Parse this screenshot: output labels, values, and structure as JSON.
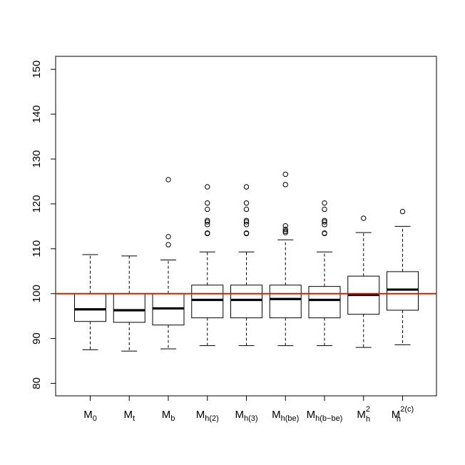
{
  "chart_data": {
    "type": "box",
    "title": "",
    "xlabel": "",
    "ylabel": "",
    "ylim": [
      77,
      153
    ],
    "yticks": [
      80,
      90,
      100,
      110,
      120,
      130,
      140,
      150
    ],
    "ytick_labels": [
      "80",
      "90",
      "100",
      "110",
      "120",
      "130",
      "140",
      "150"
    ],
    "reference_line": {
      "y": 100,
      "color": "#cc2200"
    },
    "box_fill": "#ffffff",
    "grid": false,
    "categories": [
      {
        "base": "M",
        "sub": "0",
        "sup": ""
      },
      {
        "base": "M",
        "sub": "t",
        "sup": ""
      },
      {
        "base": "M",
        "sub": "b",
        "sup": ""
      },
      {
        "base": "M",
        "sub": "h(2)",
        "sup": ""
      },
      {
        "base": "M",
        "sub": "h(3)",
        "sup": ""
      },
      {
        "base": "M",
        "sub": "h(be)",
        "sup": ""
      },
      {
        "base": "M",
        "sub": "h(b−be)",
        "sup": ""
      },
      {
        "base": "M",
        "sub": "h",
        "sup": "2"
      },
      {
        "base": "M",
        "sub": "h",
        "sup": "2(c)"
      }
    ],
    "boxes": [
      {
        "whisker_low": 87.5,
        "q1": 93.8,
        "median": 96.5,
        "q3": 100.0,
        "whisker_high": 108.7,
        "outliers": []
      },
      {
        "whisker_low": 87.2,
        "q1": 93.6,
        "median": 96.3,
        "q3": 100.0,
        "whisker_high": 108.4,
        "outliers": []
      },
      {
        "whisker_low": 87.7,
        "q1": 93.0,
        "median": 96.7,
        "q3": 100.0,
        "whisker_high": 107.5,
        "outliers": [
          110.9,
          112.7,
          125.4
        ]
      },
      {
        "whisker_low": 88.4,
        "q1": 94.6,
        "median": 98.6,
        "q3": 101.9,
        "whisker_high": 109.3,
        "outliers": [
          113.4,
          113.5,
          115.4,
          116.0,
          116.3,
          118.8,
          120.2,
          123.8
        ]
      },
      {
        "whisker_low": 88.4,
        "q1": 94.6,
        "median": 98.6,
        "q3": 101.9,
        "whisker_high": 109.3,
        "outliers": [
          113.4,
          113.5,
          115.4,
          116.0,
          116.3,
          118.8,
          120.2,
          123.8
        ]
      },
      {
        "whisker_low": 88.4,
        "q1": 94.6,
        "median": 98.8,
        "q3": 101.9,
        "whisker_high": 112.0,
        "outliers": [
          113.6,
          113.9,
          114.3,
          115.1,
          124.3,
          126.6
        ]
      },
      {
        "whisker_low": 88.4,
        "q1": 94.6,
        "median": 98.6,
        "q3": 101.6,
        "whisker_high": 109.3,
        "outliers": [
          113.4,
          113.5,
          115.4,
          116.0,
          116.3,
          118.8,
          120.2
        ]
      },
      {
        "whisker_low": 88.0,
        "q1": 95.4,
        "median": 99.7,
        "q3": 103.9,
        "whisker_high": 113.6,
        "outliers": [
          116.8
        ]
      },
      {
        "whisker_low": 88.6,
        "q1": 96.3,
        "median": 100.9,
        "q3": 104.9,
        "whisker_high": 115.0,
        "outliers": [
          118.3
        ]
      }
    ]
  }
}
